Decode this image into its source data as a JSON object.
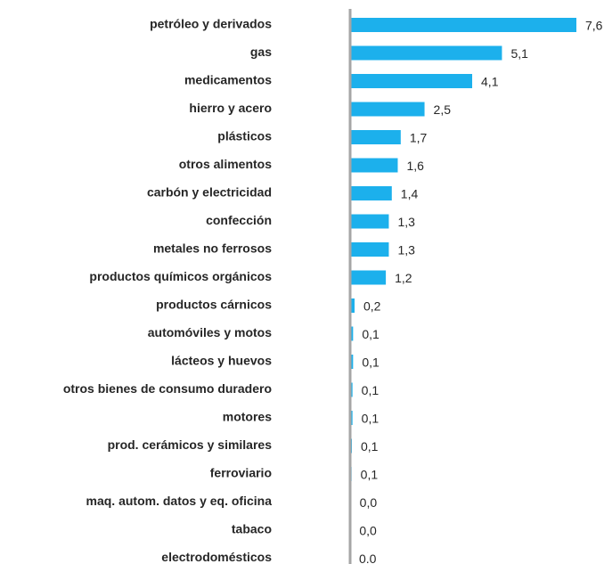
{
  "chart_data": {
    "type": "bar",
    "orientation": "horizontal",
    "color": "#1cb0ec",
    "categories": [
      "petróleo y derivados",
      "gas",
      "medicamentos",
      "hierro y acero",
      "plásticos",
      "otros alimentos",
      "carbón y electricidad",
      "confección",
      "metales no ferrosos",
      "productos químicos orgánicos",
      "productos cárnicos",
      "automóviles y motos",
      "lácteos y huevos",
      "otros bienes de consumo duradero",
      "motores",
      "prod. cerámicos y similares",
      "ferroviario",
      "maq. autom. datos y eq. oficina",
      "tabaco",
      "electrodomésticos"
    ],
    "values": [
      7.6,
      5.1,
      4.1,
      2.5,
      1.7,
      1.6,
      1.4,
      1.3,
      1.3,
      1.2,
      0.15,
      0.1,
      0.1,
      0.08,
      0.08,
      0.06,
      0.05,
      0.02,
      0.01,
      0
    ],
    "value_labels": [
      "7,6",
      "5,1",
      "4,1",
      "2,5",
      "1,7",
      "1,6",
      "1,4",
      "1,3",
      "1,3",
      "1,2",
      "0,2",
      "0,1",
      "0,1",
      "0,1",
      "0,1",
      "0,1",
      "0,1",
      "0,0",
      "0,0",
      "0.0"
    ]
  }
}
